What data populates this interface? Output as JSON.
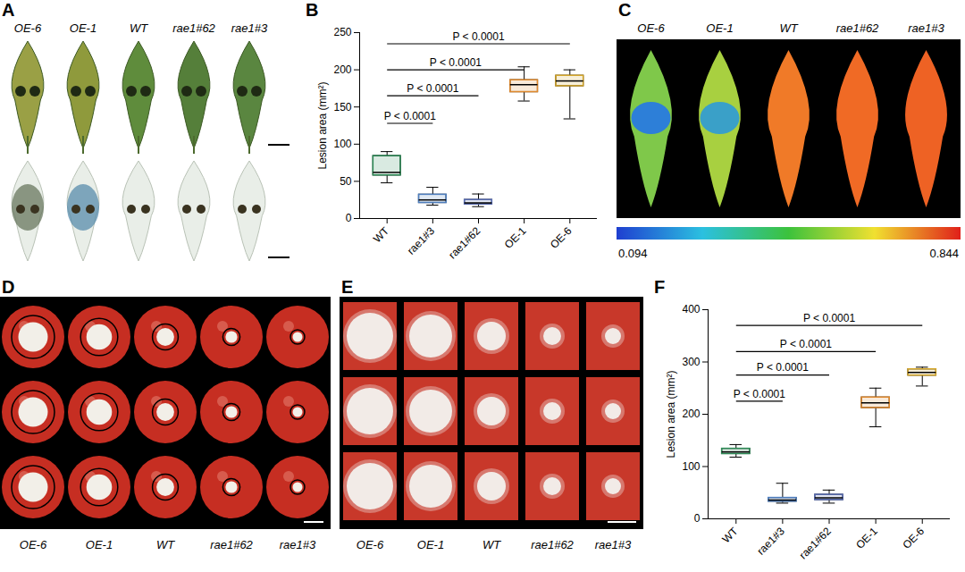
{
  "panels": [
    {
      "letter": "A",
      "type": "image",
      "labels": [
        "OE-6",
        "OE-1",
        "WT",
        "rae1#62",
        "rae1#3"
      ]
    },
    {
      "letter": "C",
      "type": "image",
      "labels": [
        "OE-6",
        "OE-1",
        "WT",
        "rae1#62",
        "rae1#3"
      ],
      "colorbar": {
        "range": [
          0.094,
          0.844
        ]
      }
    },
    {
      "letter": "D",
      "type": "image",
      "labels": [
        "OE-6",
        "OE-1",
        "WT",
        "rae1#62",
        "rae1#3"
      ]
    },
    {
      "letter": "E",
      "type": "image",
      "labels": [
        "OE-6",
        "OE-1",
        "WT",
        "rae1#62",
        "rae1#3"
      ]
    }
  ],
  "chart_data": [
    {
      "letter": "B",
      "type": "box",
      "ylabel": "Lesion area (mm²)",
      "categories": [
        "WT",
        "rae1#3",
        "rae1#62",
        "OE-1",
        "OE-6"
      ],
      "colors": [
        "#2e8b57",
        "#4f7fbf",
        "#5b6fb5",
        "#e08a2e",
        "#d4a62a"
      ],
      "ylim": [
        0,
        250
      ],
      "yticks": [
        0,
        50,
        100,
        150,
        200,
        250
      ],
      "stats": {
        "min": [
          48,
          18,
          16,
          158,
          134
        ],
        "q1": [
          58,
          21,
          19,
          170,
          178
        ],
        "median": [
          62,
          25,
          21,
          180,
          185
        ],
        "q3": [
          84,
          32,
          25,
          186,
          192
        ],
        "max": [
          90,
          42,
          33,
          204,
          200
        ]
      },
      "comparisons": [
        {
          "from": "WT",
          "to": "rae1#3",
          "y": 128,
          "label": "P < 0.0001"
        },
        {
          "from": "WT",
          "to": "rae1#62",
          "y": 165,
          "label": "P < 0.0001"
        },
        {
          "from": "WT",
          "to": "OE-1",
          "y": 200,
          "label": "P < 0.0001"
        },
        {
          "from": "WT",
          "to": "OE-6",
          "y": 235,
          "label": "P < 0.0001"
        }
      ]
    },
    {
      "letter": "F",
      "type": "box",
      "ylabel": "Lesion area (mm²)",
      "categories": [
        "WT",
        "rae1#3",
        "rae1#62",
        "OE-1",
        "OE-6"
      ],
      "colors": [
        "#2e8b57",
        "#4f7fbf",
        "#5b6fb5",
        "#e08a2e",
        "#d4a62a"
      ],
      "ylim": [
        0,
        400
      ],
      "yticks": [
        0,
        100,
        200,
        300,
        400
      ],
      "stats": {
        "min": [
          118,
          30,
          30,
          176,
          254
        ],
        "q1": [
          124,
          33,
          36,
          212,
          274
        ],
        "median": [
          128,
          36,
          40,
          222,
          280
        ],
        "q3": [
          134,
          40,
          46,
          232,
          286
        ],
        "max": [
          142,
          68,
          55,
          250,
          290
        ]
      },
      "comparisons": [
        {
          "from": "WT",
          "to": "rae1#3",
          "y": 225,
          "label": "P < 0.0001"
        },
        {
          "from": "WT",
          "to": "rae1#62",
          "y": 275,
          "label": "P < 0.0001"
        },
        {
          "from": "WT",
          "to": "OE-1",
          "y": 320,
          "label": "P < 0.0001"
        },
        {
          "from": "WT",
          "to": "OE-6",
          "y": 370,
          "label": "P < 0.0001"
        }
      ]
    }
  ]
}
